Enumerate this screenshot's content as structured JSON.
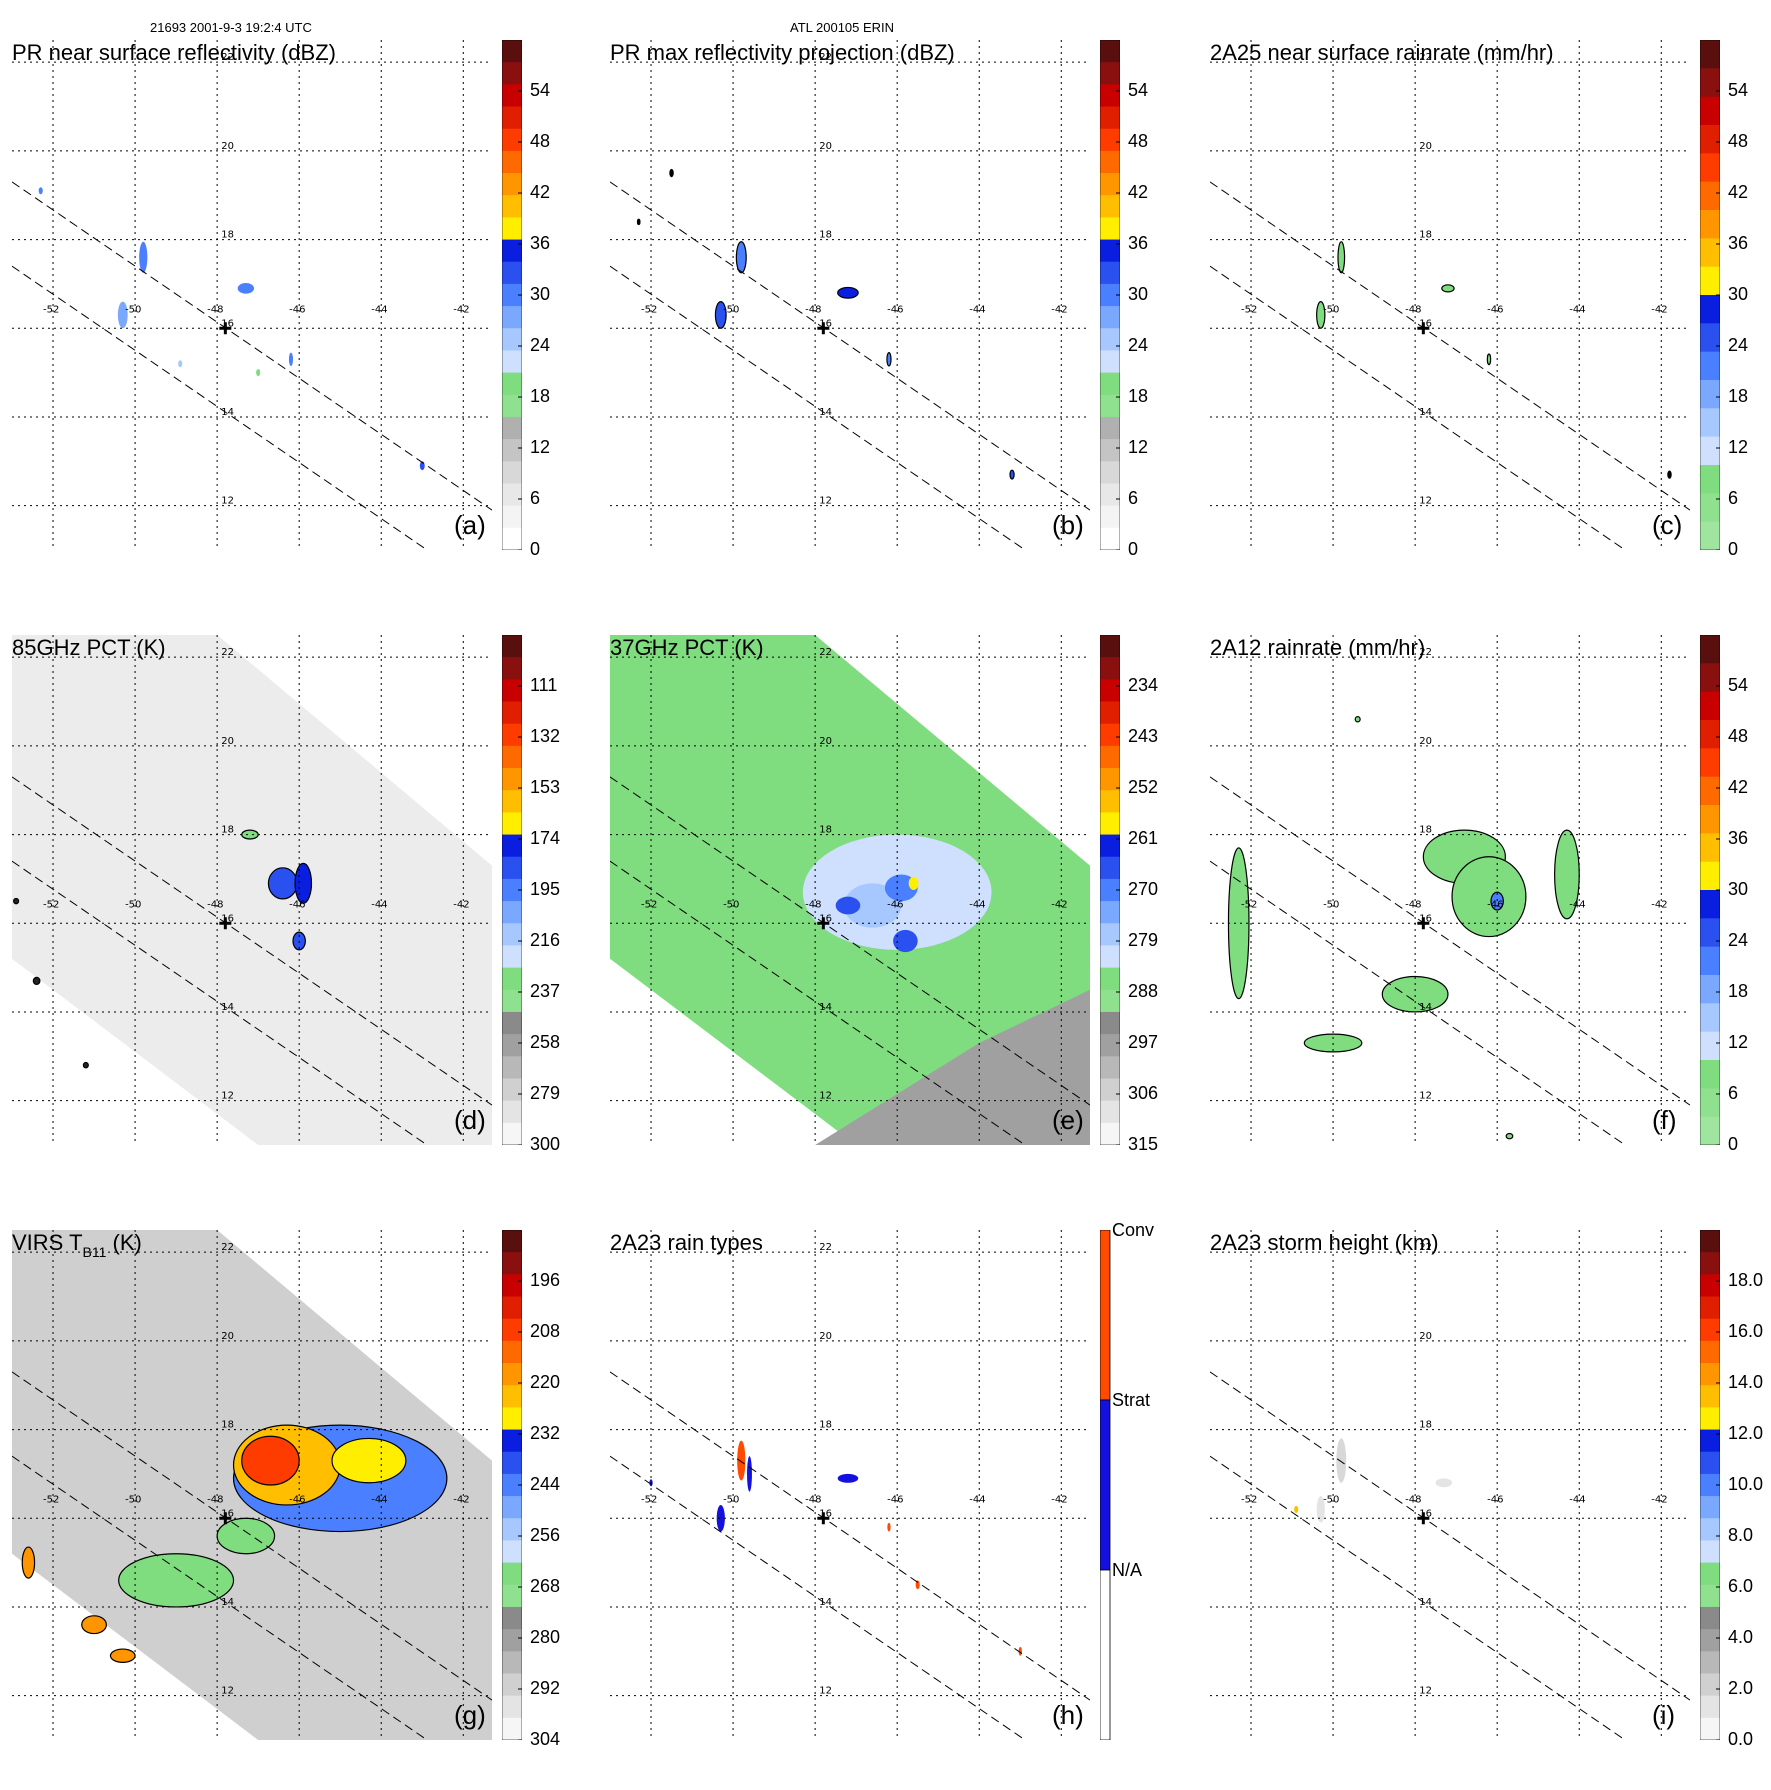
{
  "header": {
    "orbit_time": "21693 2001-9-3 19:2:4 UTC",
    "storm": "ATL 200105 ERIN"
  },
  "colors": {
    "gray_white": [
      "#ffffff",
      "#eeeeee",
      "#dddddd",
      "#cccccc",
      "#bbbbbb",
      "#aaaaaa"
    ],
    "palette": [
      "#ffffff",
      "#f4f4f4",
      "#e8e8e8",
      "#d8d8d8",
      "#c4c4c4",
      "#b0b0b0",
      "#a0a0a0",
      "#7fdc7f",
      "#6fd26f",
      "#cfe0ff",
      "#a7c8ff",
      "#7aa8ff",
      "#4a7fff",
      "#2a50f0",
      "#0a1ee0",
      "#ffee00",
      "#ffd000",
      "#ffaa00",
      "#ff8000",
      "#ff5a00",
      "#ff2a00",
      "#e00000",
      "#b00000",
      "#8a1010",
      "#5a0f0f"
    ],
    "rain_types": [
      "#ffffff",
      "#1410e0",
      "#ff4a00"
    ]
  },
  "axis_ticks": {
    "lon": [
      "-52",
      "-50",
      "-48",
      "-46",
      "-44",
      "-42"
    ],
    "lat": [
      "22",
      "20",
      "18",
      "16",
      "14",
      "12"
    ]
  },
  "panels": [
    {
      "id": "a",
      "title": "PR near surface reflectivity (dBZ)",
      "label": "(a)",
      "colorbar_ticks": [
        "54",
        "48",
        "42",
        "36",
        "30",
        "24",
        "18",
        "12",
        "6",
        "0"
      ],
      "scheme": "dbz"
    },
    {
      "id": "b",
      "title": "PR max reflectivity projection (dBZ)",
      "label": "(b)",
      "colorbar_ticks": [
        "54",
        "48",
        "42",
        "36",
        "30",
        "24",
        "18",
        "12",
        "6",
        "0"
      ],
      "scheme": "dbz"
    },
    {
      "id": "c",
      "title": "2A25 near surface rainrate (mm/hr)",
      "label": "(c)",
      "colorbar_ticks": [
        "54",
        "48",
        "42",
        "36",
        "30",
        "24",
        "18",
        "12",
        "6",
        "0"
      ],
      "scheme": "rain"
    },
    {
      "id": "d",
      "title": "85GHz PCT (K)",
      "label": "(d)",
      "colorbar_ticks": [
        "111",
        "132",
        "153",
        "174",
        "195",
        "216",
        "237",
        "258",
        "279",
        "300"
      ],
      "scheme": "pct"
    },
    {
      "id": "e",
      "title": "37GHz PCT (K)",
      "label": "(e)",
      "colorbar_ticks": [
        "234",
        "243",
        "252",
        "261",
        "270",
        "279",
        "288",
        "297",
        "306",
        "315"
      ],
      "scheme": "pct"
    },
    {
      "id": "f",
      "title": "2A12 rainrate (mm/hr)",
      "label": "(f)",
      "colorbar_ticks": [
        "54",
        "48",
        "42",
        "36",
        "30",
        "24",
        "18",
        "12",
        "6",
        "0"
      ],
      "scheme": "rain"
    },
    {
      "id": "g",
      "title_main": "VIRS T",
      "title_sub": "B11",
      "title_tail": " (K)",
      "label": "(g)",
      "colorbar_ticks": [
        "196",
        "208",
        "220",
        "232",
        "244",
        "256",
        "268",
        "280",
        "292",
        "304"
      ],
      "scheme": "pct"
    },
    {
      "id": "h",
      "title": "2A23 rain types",
      "label": "(h)",
      "colorbar_ticks": [
        "Conv",
        "Strat",
        "N/A"
      ],
      "scheme": "types"
    },
    {
      "id": "i",
      "title": "2A23 storm height (km)",
      "label": "(i)",
      "colorbar_ticks": [
        "18.0",
        "16.0",
        "14.0",
        "12.0",
        "10.0",
        "8.0",
        "6.0",
        "4.0",
        "2.0",
        "0.0"
      ],
      "scheme": "height"
    }
  ],
  "storm_center": {
    "lon": -47.8,
    "lat": 16.0
  },
  "map_extent": {
    "lon": [
      -53.0,
      -41.3
    ],
    "lat": [
      11.0,
      22.5
    ]
  }
}
